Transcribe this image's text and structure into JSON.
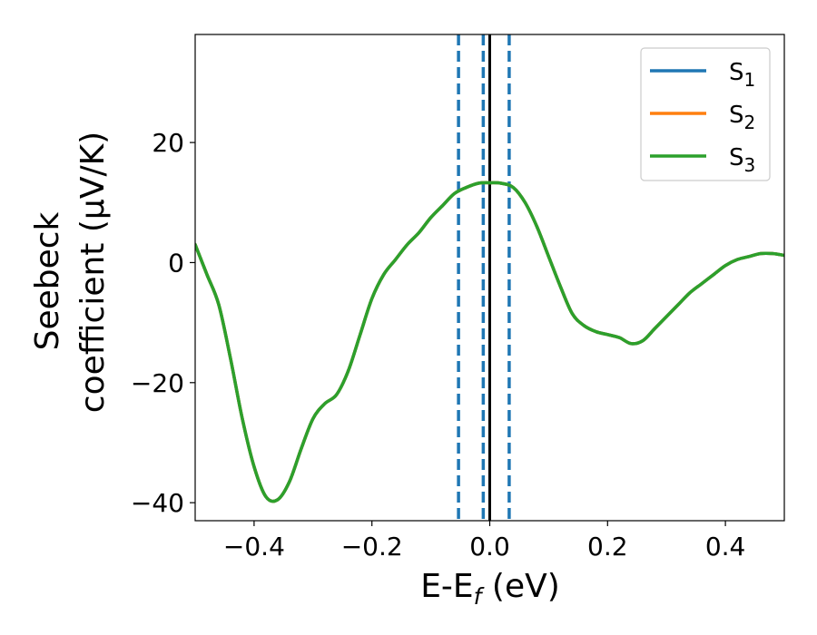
{
  "chart_data": {
    "type": "line",
    "xlabel": "E-E",
    "xlabel_sub": "f",
    "xlabel_unit": " (eV)",
    "ylabel_line1": "Seebeck",
    "ylabel_line2": "coefficient  (μV/K)",
    "xlim": [
      -0.5,
      0.5
    ],
    "ylim": [
      -43,
      38
    ],
    "xticks": [
      -0.4,
      -0.2,
      0.0,
      0.2,
      0.4
    ],
    "xtick_labels": [
      "−0.4",
      "−0.2",
      "0.0",
      "0.2",
      "0.4"
    ],
    "yticks": [
      -40,
      -20,
      0,
      20
    ],
    "ytick_labels": [
      "−40",
      "−20",
      "0",
      "20"
    ],
    "grid": false,
    "legend_position": "top-right",
    "vlines": [
      {
        "x": 0.0,
        "style": "solid",
        "color": "#000000"
      },
      {
        "x": -0.053,
        "style": "dashed",
        "color": "#1f77b4"
      },
      {
        "x": -0.011,
        "style": "dashed",
        "color": "#1f77b4"
      },
      {
        "x": 0.033,
        "style": "dashed",
        "color": "#1f77b4"
      }
    ],
    "x": [
      -0.5,
      -0.48,
      -0.46,
      -0.44,
      -0.42,
      -0.4,
      -0.38,
      -0.36,
      -0.34,
      -0.32,
      -0.3,
      -0.28,
      -0.26,
      -0.24,
      -0.22,
      -0.2,
      -0.18,
      -0.16,
      -0.14,
      -0.12,
      -0.1,
      -0.08,
      -0.06,
      -0.04,
      -0.02,
      0.0,
      0.02,
      0.04,
      0.06,
      0.08,
      0.1,
      0.12,
      0.14,
      0.16,
      0.18,
      0.2,
      0.22,
      0.24,
      0.26,
      0.28,
      0.3,
      0.32,
      0.34,
      0.36,
      0.38,
      0.4,
      0.42,
      0.44,
      0.46,
      0.48,
      0.5
    ],
    "series": [
      {
        "name": "S",
        "sub": "1",
        "color": "#1f77b4",
        "values": [
          3,
          -2,
          -7,
          -16,
          -26,
          -34,
          -39,
          -39.5,
          -36.5,
          -31,
          -26,
          -23.5,
          -22,
          -18,
          -12,
          -6,
          -2,
          0.5,
          3,
          5,
          7.5,
          9.5,
          11.5,
          12.5,
          13.2,
          13.3,
          13.2,
          12.5,
          10,
          6,
          1,
          -4,
          -8.5,
          -10.5,
          -11.5,
          -12,
          -12.5,
          -13.5,
          -13,
          -11,
          -9,
          -7,
          -5,
          -3.5,
          -2,
          -0.5,
          0.5,
          1,
          1.5,
          1.5,
          1.2
        ]
      },
      {
        "name": "S",
        "sub": "2",
        "color": "#ff7f0e",
        "values": [
          3,
          -2,
          -7,
          -16,
          -26,
          -34,
          -39,
          -39.5,
          -36.5,
          -31,
          -26,
          -23.5,
          -22,
          -18,
          -12,
          -6,
          -2,
          0.5,
          3,
          5,
          7.5,
          9.5,
          11.5,
          12.5,
          13.2,
          13.3,
          13.2,
          12.5,
          10,
          6,
          1,
          -4,
          -8.5,
          -10.5,
          -11.5,
          -12,
          -12.5,
          -13.5,
          -13,
          -11,
          -9,
          -7,
          -5,
          -3.5,
          -2,
          -0.5,
          0.5,
          1,
          1.5,
          1.5,
          1.2
        ]
      },
      {
        "name": "S",
        "sub": "3",
        "color": "#2ca02c",
        "values": [
          3,
          -2,
          -7,
          -16,
          -26,
          -34,
          -39,
          -39.5,
          -36.5,
          -31,
          -26,
          -23.5,
          -22,
          -18,
          -12,
          -6,
          -2,
          0.5,
          3,
          5,
          7.5,
          9.5,
          11.5,
          12.5,
          13.2,
          13.3,
          13.2,
          12.5,
          10,
          6,
          1,
          -4,
          -8.5,
          -10.5,
          -11.5,
          -12,
          -12.5,
          -13.5,
          -13,
          -11,
          -9,
          -7,
          -5,
          -3.5,
          -2,
          -0.5,
          0.5,
          1,
          1.5,
          1.5,
          1.2
        ]
      }
    ]
  }
}
